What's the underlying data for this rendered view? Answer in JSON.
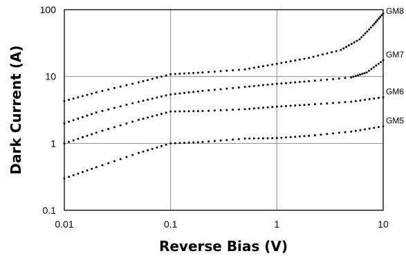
{
  "chart_data": {
    "type": "scatter",
    "title": "",
    "xlabel": "Reverse Bias (V)",
    "ylabel": "Dark Current (A)",
    "x_scale": "log",
    "y_scale": "log",
    "xlim": [
      0.01,
      10
    ],
    "ylim": [
      0.1,
      100
    ],
    "grid": true,
    "x_ticks": [
      {
        "value": 0.01,
        "label": "0.01"
      },
      {
        "value": 0.1,
        "label": "0.1"
      },
      {
        "value": 1,
        "label": "1"
      },
      {
        "value": 10,
        "label": "10"
      }
    ],
    "y_ticks": [
      {
        "value": 0.1,
        "label": "0.1"
      },
      {
        "value": 1,
        "label": "1"
      },
      {
        "value": 10,
        "label": "10"
      },
      {
        "value": 100,
        "label": "100"
      }
    ],
    "series": [
      {
        "name": "GM8",
        "x": [
          0.01,
          0.02,
          0.05,
          0.1,
          0.2,
          0.5,
          1,
          2,
          4,
          6,
          8,
          10
        ],
        "y": [
          4.3,
          5.8,
          8.2,
          10.8,
          11.5,
          12.8,
          15.5,
          19,
          25,
          36,
          58,
          88
        ]
      },
      {
        "name": "GM7",
        "x": [
          0.01,
          0.02,
          0.05,
          0.1,
          0.2,
          0.5,
          1,
          2,
          5,
          7,
          10
        ],
        "y": [
          2.0,
          2.9,
          4.2,
          5.4,
          6.1,
          7.0,
          7.8,
          8.5,
          9.7,
          11.5,
          17.5
        ]
      },
      {
        "name": "GM6",
        "x": [
          0.01,
          0.02,
          0.05,
          0.1,
          0.2,
          0.5,
          1,
          2,
          5,
          10
        ],
        "y": [
          1.0,
          1.45,
          2.25,
          3.0,
          3.05,
          3.25,
          3.55,
          3.8,
          4.2,
          4.9
        ]
      },
      {
        "name": "GM5",
        "x": [
          0.01,
          0.02,
          0.05,
          0.1,
          0.2,
          0.5,
          1,
          2,
          5,
          10
        ],
        "y": [
          0.3,
          0.44,
          0.72,
          1.0,
          1.05,
          1.18,
          1.2,
          1.3,
          1.5,
          1.8
        ]
      }
    ]
  }
}
